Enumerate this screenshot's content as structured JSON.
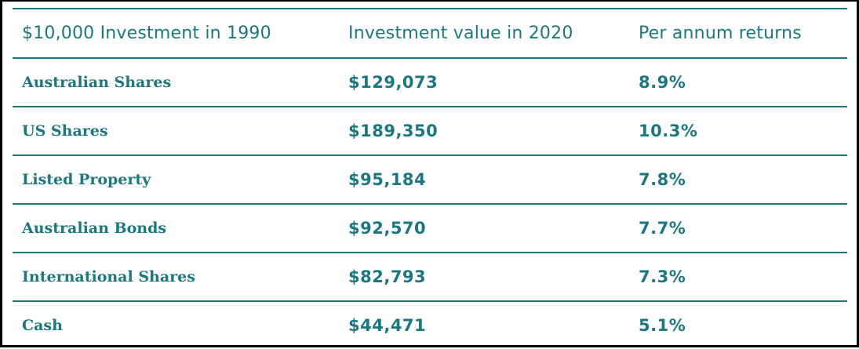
{
  "table": {
    "headers": [
      "$10,000 Investment in 1990",
      "Investment value in 2020",
      "Per annum returns"
    ],
    "rows": [
      {
        "asset": "Australian Shares",
        "value": "$129,073",
        "return": "8.9%"
      },
      {
        "asset": "US Shares",
        "value": "$189,350",
        "return": "10.3%"
      },
      {
        "asset": "Listed Property",
        "value": "$95,184",
        "return": "7.8%"
      },
      {
        "asset": "Australian Bonds",
        "value": "$92,570",
        "return": "7.7%"
      },
      {
        "asset": "International Shares",
        "value": "$82,793",
        "return": "7.3%"
      },
      {
        "asset": "Cash",
        "value": "$44,471",
        "return": "5.1%"
      }
    ]
  },
  "colors": {
    "text": "#1b7880",
    "rule": "#1b7880",
    "frame": "#000000"
  }
}
